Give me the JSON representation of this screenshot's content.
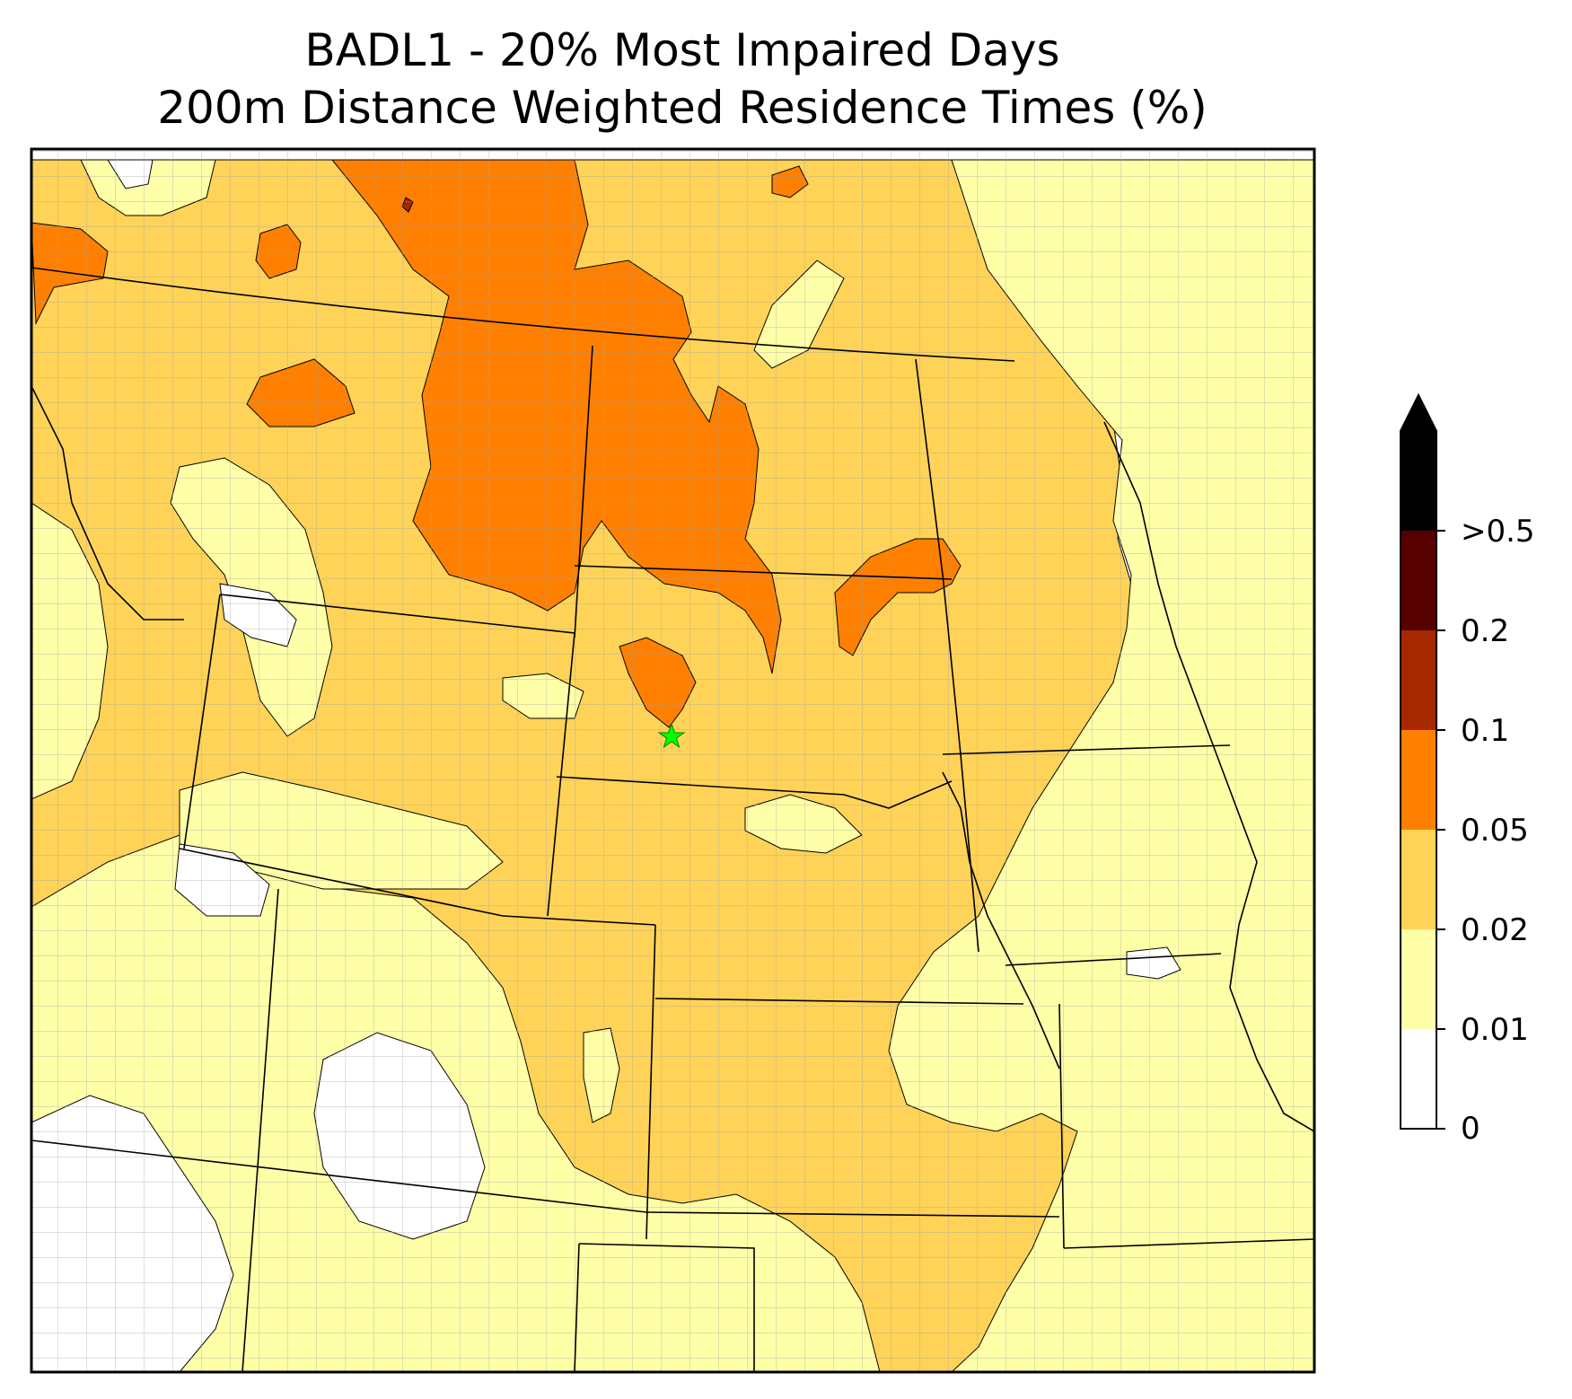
{
  "title": {
    "line1": "BADL1 - 20% Most Impaired Days",
    "line2": "200m Distance Weighted Residence Times (%)"
  },
  "colorbar": {
    "labels": [
      "0",
      "0.01",
      "0.02",
      "0.05",
      "0.1",
      "0.2",
      ">0.5"
    ],
    "colors": [
      "#ffffff",
      "#ffffa8",
      "#ffd358",
      "#ff8000",
      "#a62800",
      "#560000",
      "#000000"
    ],
    "extend": "max"
  },
  "site_marker": {
    "color": "#00ff00",
    "shape": "star"
  },
  "colors": {
    "county_lines": "#a0a0a0",
    "state_lines": "#000000",
    "contour_lines": "#000000"
  }
}
